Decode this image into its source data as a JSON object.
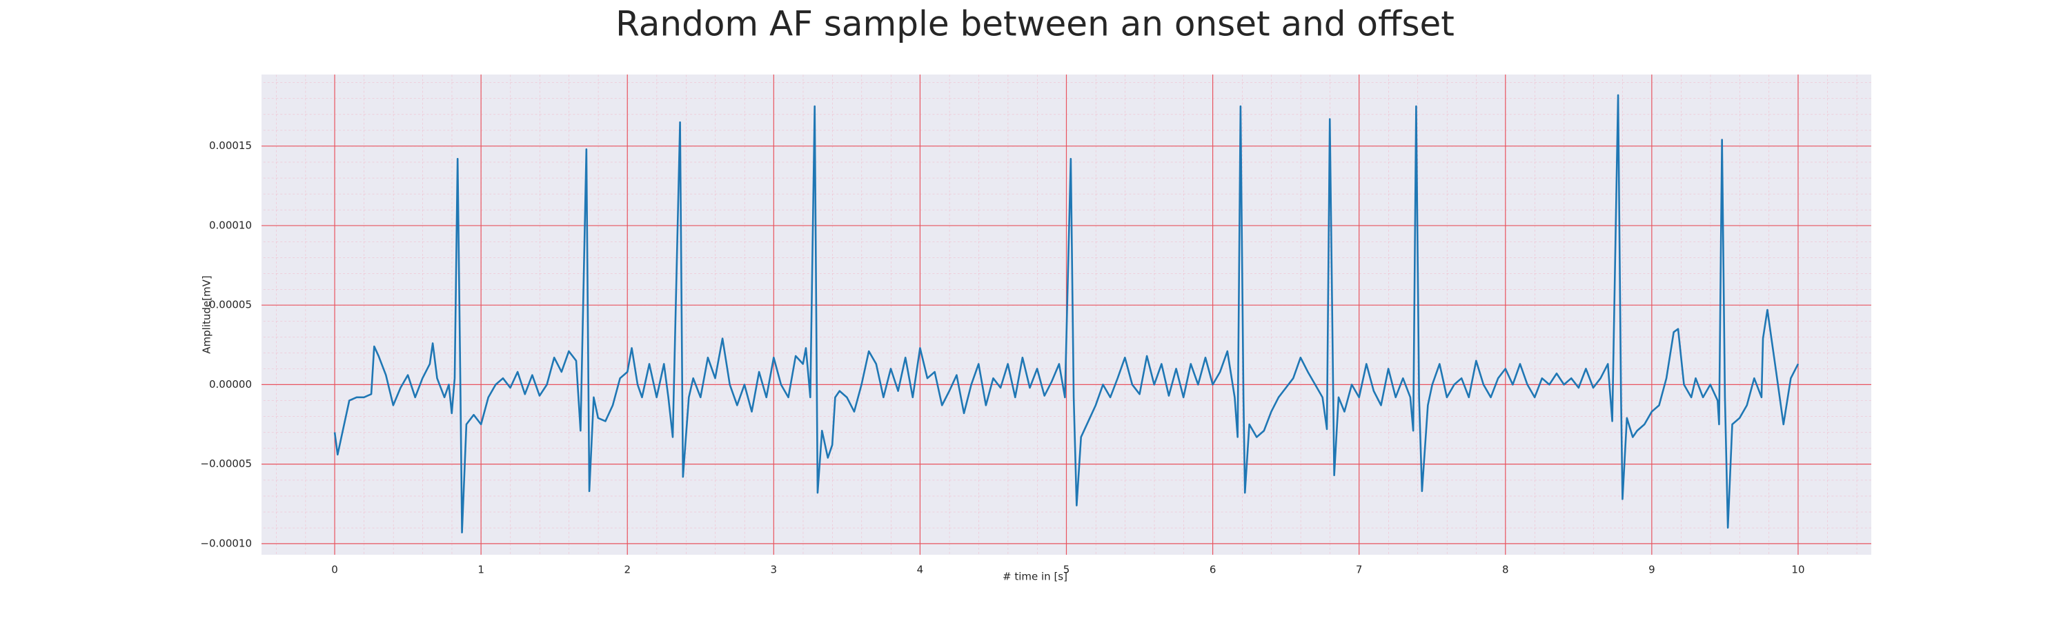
{
  "chart_data": {
    "type": "line",
    "title": "Random AF sample between an onset and offset",
    "xlabel": "# time in [s]",
    "ylabel": "Amplitude[mV]",
    "color": "#1f77b4",
    "grid": true,
    "minor_grid": true,
    "xlim": [
      -0.5,
      10.5
    ],
    "ylim": [
      -0.000107,
      0.000195
    ],
    "xticks": [
      0,
      1,
      2,
      3,
      4,
      5,
      6,
      7,
      8,
      9,
      10
    ],
    "yticks": [
      {
        "value": -0.0001,
        "label": "−0.00010"
      },
      {
        "value": -5e-05,
        "label": "−0.00005"
      },
      {
        "value": 0,
        "label": "0.00000"
      },
      {
        "value": 5e-05,
        "label": "0.00005"
      },
      {
        "value": 0.0001,
        "label": "0.00010"
      },
      {
        "value": 0.00015,
        "label": "0.00015"
      }
    ],
    "x": [
      0,
      0.02,
      0.1,
      0.15,
      0.2,
      0.25,
      0.27,
      0.3,
      0.35,
      0.4,
      0.45,
      0.5,
      0.55,
      0.6,
      0.65,
      0.67,
      0.7,
      0.75,
      0.78,
      0.8,
      0.82,
      0.84,
      0.86,
      0.87,
      0.9,
      0.95,
      1.0,
      1.05,
      1.1,
      1.15,
      1.2,
      1.25,
      1.3,
      1.35,
      1.4,
      1.45,
      1.5,
      1.55,
      1.6,
      1.65,
      1.68,
      1.72,
      1.74,
      1.77,
      1.8,
      1.85,
      1.9,
      1.95,
      2.0,
      2.03,
      2.07,
      2.1,
      2.15,
      2.2,
      2.25,
      2.28,
      2.31,
      2.36,
      2.38,
      2.42,
      2.45,
      2.5,
      2.55,
      2.6,
      2.65,
      2.7,
      2.75,
      2.8,
      2.85,
      2.9,
      2.95,
      3.0,
      3.05,
      3.1,
      3.15,
      3.2,
      3.22,
      3.25,
      3.28,
      3.3,
      3.33,
      3.37,
      3.4,
      3.42,
      3.45,
      3.5,
      3.55,
      3.6,
      3.65,
      3.7,
      3.75,
      3.8,
      3.85,
      3.9,
      3.95,
      4.0,
      4.05,
      4.1,
      4.15,
      4.2,
      4.25,
      4.3,
      4.35,
      4.4,
      4.45,
      4.5,
      4.55,
      4.6,
      4.65,
      4.7,
      4.75,
      4.8,
      4.85,
      4.9,
      4.95,
      4.99,
      5.03,
      5.05,
      5.07,
      5.1,
      5.15,
      5.2,
      5.25,
      5.3,
      5.35,
      5.4,
      5.45,
      5.5,
      5.55,
      5.6,
      5.65,
      5.7,
      5.75,
      5.8,
      5.85,
      5.9,
      5.95,
      6.0,
      6.05,
      6.1,
      6.15,
      6.17,
      6.19,
      6.21,
      6.22,
      6.25,
      6.3,
      6.35,
      6.4,
      6.45,
      6.5,
      6.55,
      6.6,
      6.65,
      6.7,
      6.75,
      6.78,
      6.8,
      6.83,
      6.86,
      6.9,
      6.95,
      7.0,
      7.05,
      7.1,
      7.15,
      7.2,
      7.25,
      7.3,
      7.35,
      7.37,
      7.39,
      7.41,
      7.43,
      7.47,
      7.5,
      7.55,
      7.6,
      7.65,
      7.7,
      7.75,
      7.8,
      7.85,
      7.9,
      7.95,
      8.0,
      8.05,
      8.1,
      8.15,
      8.2,
      8.25,
      8.3,
      8.35,
      8.4,
      8.45,
      8.5,
      8.55,
      8.6,
      8.65,
      8.7,
      8.73,
      8.77,
      8.79,
      8.8,
      8.83,
      8.87,
      8.9,
      8.95,
      9.0,
      9.05,
      9.1,
      9.15,
      9.18,
      9.22,
      9.27,
      9.3,
      9.35,
      9.4,
      9.45,
      9.46,
      9.48,
      9.5,
      9.52,
      9.55,
      9.6,
      9.65,
      9.7,
      9.75,
      9.76,
      9.79,
      9.85,
      9.9,
      9.95,
      10.0
    ],
    "values": [
      -3e-05,
      -4.4e-05,
      -1e-05,
      -8e-06,
      -8e-06,
      -6e-06,
      2.4e-05,
      1.8e-05,
      6e-06,
      -1.3e-05,
      -2e-06,
      6e-06,
      -8e-06,
      4e-06,
      1.3e-05,
      2.6e-05,
      4e-06,
      -8e-06,
      0,
      -1.8e-05,
      4e-06,
      0.000142,
      -8e-06,
      -9.3e-05,
      -2.5e-05,
      -1.9e-05,
      -2.5e-05,
      -8e-06,
      0,
      4e-06,
      -2e-06,
      8e-06,
      -6e-06,
      6e-06,
      -7e-06,
      0,
      1.7e-05,
      8e-06,
      2.1e-05,
      1.5e-05,
      -2.9e-05,
      0.000148,
      -6.7e-05,
      -8e-06,
      -2.1e-05,
      -2.3e-05,
      -1.3e-05,
      4e-06,
      8e-06,
      2.3e-05,
      0,
      -8e-06,
      1.3e-05,
      -8e-06,
      1.3e-05,
      -8e-06,
      -3.3e-05,
      0.000165,
      -5.8e-05,
      -8e-06,
      4e-06,
      -8e-06,
      1.7e-05,
      4e-06,
      2.9e-05,
      0,
      -1.3e-05,
      0,
      -1.7e-05,
      8e-06,
      -8e-06,
      1.7e-05,
      0,
      -8e-06,
      1.8e-05,
      1.3e-05,
      2.3e-05,
      -8e-06,
      0.000175,
      -6.8e-05,
      -2.9e-05,
      -4.6e-05,
      -3.8e-05,
      -8e-06,
      -4e-06,
      -8e-06,
      -1.7e-05,
      0,
      2.1e-05,
      1.3e-05,
      -8e-06,
      1e-05,
      -4e-06,
      1.7e-05,
      -8e-06,
      2.3e-05,
      4e-06,
      8e-06,
      -1.3e-05,
      -4e-06,
      6e-06,
      -1.8e-05,
      0,
      1.3e-05,
      -1.3e-05,
      4e-06,
      -2e-06,
      1.3e-05,
      -8e-06,
      1.7e-05,
      -2e-06,
      1e-05,
      -7e-06,
      2e-06,
      1.3e-05,
      -8e-06,
      0.000142,
      -8e-06,
      -7.6e-05,
      -3.3e-05,
      -2.3e-05,
      -1.3e-05,
      0,
      -8e-06,
      4e-06,
      1.7e-05,
      0,
      -6e-06,
      1.8e-05,
      0,
      1.3e-05,
      -7e-06,
      1e-05,
      -8e-06,
      1.3e-05,
      0,
      1.7e-05,
      0,
      8e-06,
      2.1e-05,
      -8e-06,
      -3.3e-05,
      0.000175,
      -8e-06,
      -6.8e-05,
      -2.5e-05,
      -3.3e-05,
      -2.9e-05,
      -1.7e-05,
      -8e-06,
      -2e-06,
      4e-06,
      1.7e-05,
      8e-06,
      0,
      -8e-06,
      -2.8e-05,
      0.000167,
      -5.7e-05,
      -8e-06,
      -1.7e-05,
      0,
      -8e-06,
      1.3e-05,
      -4e-06,
      -1.3e-05,
      1e-05,
      -8e-06,
      4e-06,
      -8e-06,
      -2.9e-05,
      0.000175,
      -8e-06,
      -6.7e-05,
      -1.3e-05,
      0,
      1.3e-05,
      -8e-06,
      0,
      4e-06,
      -8e-06,
      1.5e-05,
      0,
      -8e-06,
      4e-06,
      1e-05,
      0,
      1.3e-05,
      0,
      -8e-06,
      4e-06,
      0,
      7e-06,
      0,
      4e-06,
      -2e-06,
      1e-05,
      -2e-06,
      4e-06,
      1.3e-05,
      -2.3e-05,
      0.000182,
      -8e-06,
      -7.2e-05,
      -2.1e-05,
      -3.3e-05,
      -2.9e-05,
      -2.5e-05,
      -1.7e-05,
      -1.3e-05,
      4e-06,
      3.3e-05,
      3.5e-05,
      0,
      -8e-06,
      4e-06,
      -8e-06,
      0,
      -1e-05,
      -2.5e-05,
      0.000154,
      -8e-06,
      -9e-05,
      -2.5e-05,
      -2.1e-05,
      -1.3e-05,
      4e-06,
      -8e-06,
      2.9e-05,
      4.7e-05,
      8e-06,
      -2.5e-05,
      4e-06,
      1.3e-05
    ]
  }
}
